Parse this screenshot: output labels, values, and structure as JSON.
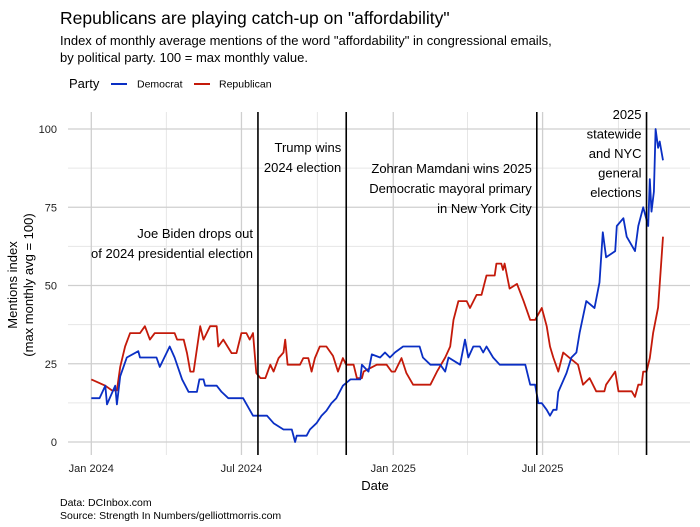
{
  "chart_data": {
    "type": "line",
    "title": "Republicans are playing catch-up on \"affordability\"",
    "subtitle": [
      "Index of monthly average mentions of the word \"affordability\" in congressional emails,",
      "by political party. 100 = max monthly value."
    ],
    "legend": {
      "title": "Party",
      "position": "top-left"
    },
    "xlabel": "Date",
    "ylabel": [
      "Mentions index",
      "(max monthly avg = 100)"
    ],
    "x_ticks": [
      {
        "date": "2024-01-01",
        "label": "Jan 2024"
      },
      {
        "date": "2024-07-01",
        "label": "Jul 2024"
      },
      {
        "date": "2025-01-01",
        "label": "Jan 2025"
      },
      {
        "date": "2025-07-01",
        "label": "Jul 2025"
      }
    ],
    "y_ticks": [
      0,
      25,
      50,
      75,
      100
    ],
    "ylim": [
      0,
      100
    ],
    "xlim": [
      "2023-12-10",
      "2025-12-31"
    ],
    "grid": true,
    "series": [
      {
        "name": "Democrat",
        "color": "#0a2fc4",
        "points": [
          [
            "2024-01-01",
            14
          ],
          [
            "2024-01-11",
            14
          ],
          [
            "2024-01-18",
            18
          ],
          [
            "2024-01-20",
            12
          ],
          [
            "2024-01-30",
            18
          ],
          [
            "2024-02-01",
            12
          ],
          [
            "2024-02-05",
            21
          ],
          [
            "2024-02-13",
            27
          ],
          [
            "2024-02-27",
            29
          ],
          [
            "2024-02-29",
            27
          ],
          [
            "2024-03-20",
            27
          ],
          [
            "2024-03-24",
            24
          ],
          [
            "2024-04-05",
            30.5
          ],
          [
            "2024-04-11",
            27
          ],
          [
            "2024-04-20",
            20
          ],
          [
            "2024-04-28",
            16
          ],
          [
            "2024-05-08",
            16
          ],
          [
            "2024-05-11",
            20
          ],
          [
            "2024-05-16",
            20
          ],
          [
            "2024-05-18",
            18
          ],
          [
            "2024-06-01",
            18
          ],
          [
            "2024-06-07",
            16
          ],
          [
            "2024-06-15",
            14
          ],
          [
            "2024-07-03",
            14
          ],
          [
            "2024-07-15",
            8.4
          ],
          [
            "2024-08-01",
            8.4
          ],
          [
            "2024-08-09",
            6
          ],
          [
            "2024-08-21",
            4
          ],
          [
            "2024-08-31",
            4
          ],
          [
            "2024-09-04",
            0
          ],
          [
            "2024-09-06",
            2
          ],
          [
            "2024-09-18",
            2
          ],
          [
            "2024-09-22",
            4
          ],
          [
            "2024-09-30",
            6
          ],
          [
            "2024-10-06",
            8.4
          ],
          [
            "2024-10-12",
            10
          ],
          [
            "2024-10-18",
            12.4
          ],
          [
            "2024-10-24",
            14
          ],
          [
            "2024-11-01",
            18
          ],
          [
            "2024-11-10",
            20
          ],
          [
            "2024-11-22",
            20
          ],
          [
            "2024-11-24",
            24.7
          ],
          [
            "2024-12-02",
            22.5
          ],
          [
            "2024-12-06",
            28
          ],
          [
            "2024-12-16",
            27
          ],
          [
            "2024-12-22",
            28.6
          ],
          [
            "2024-12-28",
            27
          ],
          [
            "2025-01-03",
            28.6
          ],
          [
            "2025-01-13",
            30.5
          ],
          [
            "2025-02-02",
            30.5
          ],
          [
            "2025-02-06",
            27
          ],
          [
            "2025-02-15",
            24.7
          ],
          [
            "2025-02-27",
            24.7
          ],
          [
            "2025-03-05",
            22.5
          ],
          [
            "2025-03-09",
            27
          ],
          [
            "2025-03-23",
            24.7
          ],
          [
            "2025-03-29",
            32.7
          ],
          [
            "2025-04-02",
            27
          ],
          [
            "2025-04-08",
            30.5
          ],
          [
            "2025-04-16",
            30.5
          ],
          [
            "2025-04-20",
            28.6
          ],
          [
            "2025-04-24",
            30.5
          ],
          [
            "2025-05-02",
            27
          ],
          [
            "2025-05-10",
            24.7
          ],
          [
            "2025-06-10",
            24.7
          ],
          [
            "2025-06-16",
            18.3
          ],
          [
            "2025-06-22",
            18.3
          ],
          [
            "2025-06-26",
            12.4
          ],
          [
            "2025-06-30",
            12.4
          ],
          [
            "2025-07-06",
            10.3
          ],
          [
            "2025-07-10",
            8.4
          ],
          [
            "2025-07-14",
            10.3
          ],
          [
            "2025-07-18",
            10.3
          ],
          [
            "2025-07-20",
            16
          ],
          [
            "2025-07-30",
            22
          ],
          [
            "2025-08-05",
            27
          ],
          [
            "2025-08-11",
            28.6
          ],
          [
            "2025-08-15",
            35
          ],
          [
            "2025-08-23",
            45
          ],
          [
            "2025-09-02",
            42.8
          ],
          [
            "2025-09-08",
            51
          ],
          [
            "2025-09-12",
            67
          ],
          [
            "2025-09-16",
            59
          ],
          [
            "2025-09-27",
            61
          ],
          [
            "2025-09-29",
            69
          ],
          [
            "2025-10-07",
            71.5
          ],
          [
            "2025-10-11",
            65.6
          ],
          [
            "2025-10-21",
            61
          ],
          [
            "2025-10-25",
            69
          ],
          [
            "2025-10-31",
            75
          ],
          [
            "2025-11-06",
            69
          ],
          [
            "2025-11-08",
            84
          ],
          [
            "2025-11-10",
            73.6
          ],
          [
            "2025-11-13",
            80
          ],
          [
            "2025-11-15",
            100
          ],
          [
            "2025-11-18",
            94
          ],
          [
            "2025-11-20",
            96
          ],
          [
            "2025-11-24",
            90
          ]
        ]
      },
      {
        "name": "Republican",
        "color": "#c41a0a",
        "points": [
          [
            "2024-01-01",
            20
          ],
          [
            "2024-01-18",
            18
          ],
          [
            "2024-01-26",
            16.5
          ],
          [
            "2024-02-01",
            16.5
          ],
          [
            "2024-02-05",
            24
          ],
          [
            "2024-02-11",
            30.5
          ],
          [
            "2024-02-17",
            34.8
          ],
          [
            "2024-02-29",
            34.8
          ],
          [
            "2024-03-06",
            37
          ],
          [
            "2024-03-12",
            32.7
          ],
          [
            "2024-03-18",
            34.8
          ],
          [
            "2024-04-11",
            34.8
          ],
          [
            "2024-04-14",
            32.7
          ],
          [
            "2024-04-22",
            32.7
          ],
          [
            "2024-04-26",
            28.4
          ],
          [
            "2024-04-30",
            22.5
          ],
          [
            "2024-05-04",
            22.5
          ],
          [
            "2024-05-12",
            37
          ],
          [
            "2024-05-16",
            32.7
          ],
          [
            "2024-05-24",
            37
          ],
          [
            "2024-06-01",
            37
          ],
          [
            "2024-06-03",
            30.5
          ],
          [
            "2024-06-09",
            32.7
          ],
          [
            "2024-06-19",
            28.4
          ],
          [
            "2024-06-25",
            28.4
          ],
          [
            "2024-06-27",
            30.5
          ],
          [
            "2024-07-01",
            34.8
          ],
          [
            "2024-07-07",
            34.8
          ],
          [
            "2024-07-11",
            32.7
          ],
          [
            "2024-07-15",
            34.8
          ],
          [
            "2024-07-19",
            22
          ],
          [
            "2024-07-24",
            20.4
          ],
          [
            "2024-07-30",
            20.4
          ],
          [
            "2024-08-05",
            24.7
          ],
          [
            "2024-08-09",
            22.5
          ],
          [
            "2024-08-15",
            26.8
          ],
          [
            "2024-08-21",
            28.6
          ],
          [
            "2024-08-23",
            32.7
          ],
          [
            "2024-08-26",
            24.7
          ],
          [
            "2024-09-10",
            24.7
          ],
          [
            "2024-09-14",
            26.8
          ],
          [
            "2024-09-20",
            26.8
          ],
          [
            "2024-09-24",
            22.5
          ],
          [
            "2024-09-28",
            26.8
          ],
          [
            "2024-10-04",
            30.5
          ],
          [
            "2024-10-12",
            30.5
          ],
          [
            "2024-10-20",
            27.5
          ],
          [
            "2024-10-26",
            22.5
          ],
          [
            "2024-11-01",
            26.8
          ],
          [
            "2024-11-05",
            24.7
          ],
          [
            "2024-11-14",
            24.7
          ],
          [
            "2024-11-18",
            20.4
          ],
          [
            "2024-11-24",
            20.4
          ],
          [
            "2024-11-26",
            22.5
          ],
          [
            "2024-12-12",
            24.7
          ],
          [
            "2024-12-24",
            24.7
          ],
          [
            "2024-12-30",
            22.5
          ],
          [
            "2025-01-03",
            22.5
          ],
          [
            "2025-01-11",
            26.8
          ],
          [
            "2025-01-17",
            22
          ],
          [
            "2025-01-25",
            18.3
          ],
          [
            "2025-02-15",
            18.3
          ],
          [
            "2025-02-23",
            22.5
          ],
          [
            "2025-03-05",
            27
          ],
          [
            "2025-03-11",
            30.5
          ],
          [
            "2025-03-15",
            39
          ],
          [
            "2025-03-21",
            45
          ],
          [
            "2025-03-31",
            45
          ],
          [
            "2025-04-04",
            42.8
          ],
          [
            "2025-04-12",
            47
          ],
          [
            "2025-04-18",
            47
          ],
          [
            "2025-04-24",
            53.2
          ],
          [
            "2025-05-04",
            53.2
          ],
          [
            "2025-05-06",
            57
          ],
          [
            "2025-05-12",
            57
          ],
          [
            "2025-05-14",
            55
          ],
          [
            "2025-05-16",
            57
          ],
          [
            "2025-05-22",
            49
          ],
          [
            "2025-05-31",
            50.5
          ],
          [
            "2025-06-08",
            45
          ],
          [
            "2025-06-16",
            39
          ],
          [
            "2025-06-22",
            39
          ],
          [
            "2025-06-30",
            42.8
          ],
          [
            "2025-07-06",
            37
          ],
          [
            "2025-07-10",
            30.5
          ],
          [
            "2025-07-14",
            27
          ],
          [
            "2025-07-20",
            22.5
          ],
          [
            "2025-07-26",
            28.6
          ],
          [
            "2025-08-03",
            26.8
          ],
          [
            "2025-08-13",
            24.7
          ],
          [
            "2025-08-19",
            18.3
          ],
          [
            "2025-08-27",
            20.4
          ],
          [
            "2025-09-04",
            16.2
          ],
          [
            "2025-09-14",
            16.2
          ],
          [
            "2025-09-16",
            18.3
          ],
          [
            "2025-09-27",
            22.5
          ],
          [
            "2025-10-01",
            16.2
          ],
          [
            "2025-10-17",
            16.2
          ],
          [
            "2025-10-21",
            14.4
          ],
          [
            "2025-10-25",
            18.3
          ],
          [
            "2025-10-29",
            18.3
          ],
          [
            "2025-10-31",
            22.5
          ],
          [
            "2025-11-04",
            22.5
          ],
          [
            "2025-11-08",
            26.8
          ],
          [
            "2025-11-12",
            34.8
          ],
          [
            "2025-11-18",
            43
          ],
          [
            "2025-11-21",
            54
          ],
          [
            "2025-11-24",
            65.6
          ]
        ]
      }
    ],
    "annotations": [
      {
        "date": "2024-07-21",
        "lines": [
          "Joe Biden drops out",
          "of 2024 presidential election"
        ]
      },
      {
        "date": "2024-11-05",
        "lines": [
          "Trump wins",
          "2024 election"
        ]
      },
      {
        "date": "2025-06-24",
        "lines": [
          "Zohran Mamdani wins 2025",
          "Democratic mayoral primary",
          "in New York City"
        ]
      },
      {
        "date": "2025-11-04",
        "lines": [
          "2025",
          "statewide",
          "and NYC",
          "general",
          "elections"
        ]
      }
    ],
    "caption": [
      "Data: DCInbox.com",
      "Source: Strength In Numbers/gelliottmorris.com"
    ]
  }
}
